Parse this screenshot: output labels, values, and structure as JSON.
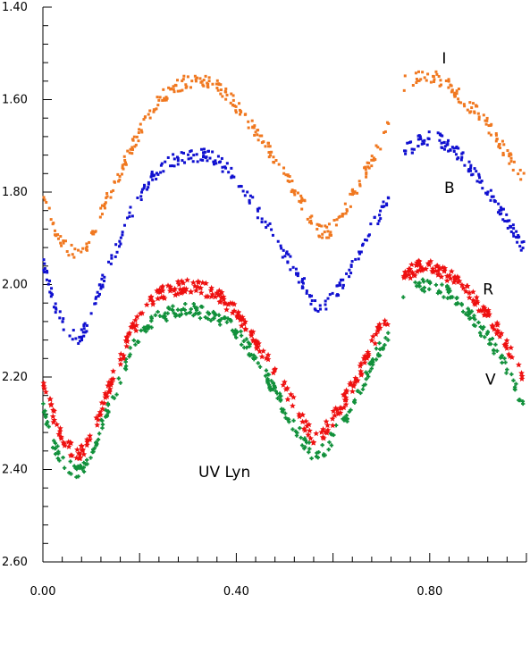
{
  "chart_data": {
    "type": "scatter",
    "title": "UV Lyn",
    "xlabel": "",
    "ylabel": "",
    "xlim": [
      0.0,
      1.0
    ],
    "ylim": [
      1.4,
      2.6
    ],
    "y_inverted": true,
    "x_ticks": [
      "0.00",
      "0.40",
      "0.80"
    ],
    "y_ticks": [
      "1.40",
      "1.60",
      "1.80",
      "2.00",
      "2.20",
      "2.40",
      "2.60"
    ],
    "x_tick_values": [
      0.0,
      0.4,
      0.8
    ],
    "y_tick_values": [
      1.4,
      1.6,
      1.8,
      2.0,
      2.2,
      2.4,
      2.6
    ],
    "grid": false,
    "series": [
      {
        "name": "I",
        "color": "#f07820",
        "marker": "dot",
        "label_pos": [
          0.825,
          1.51
        ],
        "x": [
          0.0,
          0.02,
          0.04,
          0.06,
          0.07,
          0.08,
          0.1,
          0.12,
          0.15,
          0.18,
          0.21,
          0.24,
          0.27,
          0.3,
          0.33,
          0.36,
          0.39,
          0.42,
          0.45,
          0.48,
          0.51,
          0.54,
          0.56,
          0.58,
          0.6,
          0.63,
          0.66,
          0.69,
          0.71,
          0.75,
          0.78,
          0.81,
          0.84,
          0.87,
          0.9,
          0.93,
          0.96,
          0.99
        ],
        "y": [
          1.8,
          1.87,
          1.91,
          1.93,
          1.94,
          1.93,
          1.9,
          1.84,
          1.78,
          1.71,
          1.65,
          1.6,
          1.575,
          1.56,
          1.56,
          1.57,
          1.6,
          1.64,
          1.68,
          1.73,
          1.78,
          1.83,
          1.87,
          1.89,
          1.88,
          1.83,
          1.77,
          1.71,
          1.67,
          1.56,
          1.55,
          1.55,
          1.57,
          1.6,
          1.63,
          1.67,
          1.72,
          1.77
        ]
      },
      {
        "name": "B",
        "color": "#1010d0",
        "marker": "dot",
        "label_pos": [
          0.83,
          1.79
        ],
        "x": [
          0.0,
          0.02,
          0.04,
          0.06,
          0.07,
          0.08,
          0.1,
          0.12,
          0.15,
          0.18,
          0.21,
          0.24,
          0.27,
          0.3,
          0.33,
          0.36,
          0.39,
          0.42,
          0.45,
          0.48,
          0.51,
          0.54,
          0.56,
          0.58,
          0.6,
          0.63,
          0.66,
          0.69,
          0.71,
          0.75,
          0.78,
          0.81,
          0.84,
          0.87,
          0.9,
          0.93,
          0.96,
          0.99
        ],
        "y": [
          1.95,
          2.03,
          2.08,
          2.11,
          2.12,
          2.11,
          2.07,
          2.0,
          1.93,
          1.85,
          1.79,
          1.75,
          1.73,
          1.72,
          1.72,
          1.73,
          1.76,
          1.8,
          1.85,
          1.9,
          1.95,
          2.0,
          2.04,
          2.05,
          2.03,
          1.98,
          1.92,
          1.86,
          1.82,
          1.71,
          1.69,
          1.68,
          1.7,
          1.73,
          1.77,
          1.81,
          1.86,
          1.92
        ]
      },
      {
        "name": "R",
        "color": "#ee1010",
        "marker": "star",
        "label_pos": [
          0.91,
          2.01
        ],
        "x": [
          0.0,
          0.02,
          0.04,
          0.06,
          0.07,
          0.08,
          0.1,
          0.12,
          0.15,
          0.18,
          0.21,
          0.24,
          0.27,
          0.3,
          0.33,
          0.36,
          0.39,
          0.42,
          0.45,
          0.48,
          0.51,
          0.54,
          0.56,
          0.58,
          0.6,
          0.63,
          0.66,
          0.69,
          0.71,
          0.75,
          0.78,
          0.81,
          0.84,
          0.87,
          0.9,
          0.93,
          0.96,
          0.99
        ],
        "y": [
          2.2,
          2.28,
          2.33,
          2.36,
          2.37,
          2.36,
          2.33,
          2.27,
          2.19,
          2.11,
          2.05,
          2.02,
          2.01,
          2.0,
          2.01,
          2.02,
          2.05,
          2.09,
          2.14,
          2.19,
          2.24,
          2.3,
          2.33,
          2.32,
          2.29,
          2.24,
          2.18,
          2.11,
          2.08,
          1.98,
          1.96,
          1.96,
          1.98,
          2.01,
          2.04,
          2.08,
          2.13,
          2.19
        ]
      },
      {
        "name": "V",
        "color": "#10903a",
        "marker": "plus",
        "label_pos": [
          0.915,
          2.205
        ],
        "x": [
          0.0,
          0.02,
          0.04,
          0.06,
          0.07,
          0.08,
          0.1,
          0.12,
          0.15,
          0.18,
          0.21,
          0.24,
          0.27,
          0.3,
          0.33,
          0.36,
          0.39,
          0.42,
          0.45,
          0.48,
          0.51,
          0.54,
          0.56,
          0.58,
          0.6,
          0.63,
          0.66,
          0.69,
          0.71,
          0.75,
          0.78,
          0.81,
          0.84,
          0.87,
          0.9,
          0.93,
          0.96,
          0.99
        ],
        "y": [
          2.27,
          2.34,
          2.38,
          2.4,
          2.41,
          2.4,
          2.37,
          2.31,
          2.23,
          2.15,
          2.09,
          2.07,
          2.06,
          2.05,
          2.06,
          2.07,
          2.09,
          2.13,
          2.18,
          2.23,
          2.29,
          2.34,
          2.37,
          2.36,
          2.33,
          2.28,
          2.22,
          2.15,
          2.12,
          2.03,
          2.0,
          2.0,
          2.02,
          2.05,
          2.09,
          2.13,
          2.18,
          2.25
        ]
      }
    ]
  }
}
